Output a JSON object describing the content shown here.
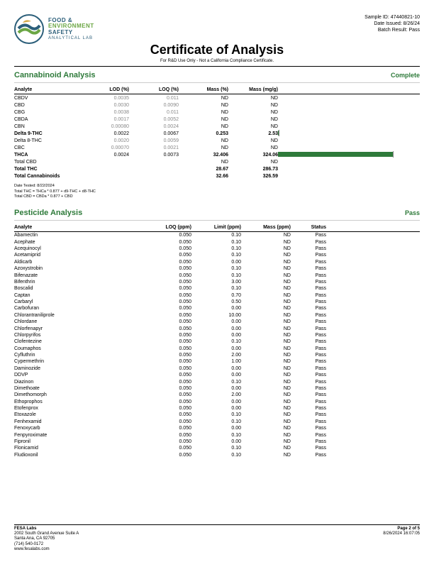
{
  "org": {
    "l1": "FOOD &",
    "l2": "ENVIRONMENT",
    "l3": "SAFETY",
    "l4": "ANALYTICAL LAB"
  },
  "meta": {
    "sample_label": "Sample ID:",
    "sample_id": "47440821-10",
    "date_label": "Date Issued:",
    "date_issued": "8/26/24",
    "batch_label": "Batch Result:",
    "batch_result": "Pass"
  },
  "title": "Certificate of Analysis",
  "subtitle": "For R&D Use Only - Not a California Compliance Certificate.",
  "cannabinoid": {
    "section_title": "Cannabinoid Analysis",
    "status": "Complete",
    "columns": [
      "Analyte",
      "LOD (%)",
      "LOQ (%)",
      "Mass (%)",
      "Mass (mg/g)"
    ],
    "bar_max": 400,
    "rows": [
      {
        "analyte": "CBDV",
        "lod": "0.0035",
        "loq": "0.011",
        "masspct": "ND",
        "massmg": "ND",
        "grey": true
      },
      {
        "analyte": "CBD",
        "lod": "0.0030",
        "loq": "0.0090",
        "masspct": "ND",
        "massmg": "ND",
        "grey": true
      },
      {
        "analyte": "CBG",
        "lod": "0.0038",
        "loq": "0.011",
        "masspct": "ND",
        "massmg": "ND",
        "grey": true
      },
      {
        "analyte": "CBDA",
        "lod": "0.0017",
        "loq": "0.0052",
        "masspct": "ND",
        "massmg": "ND",
        "grey": true
      },
      {
        "analyte": "CBN",
        "lod": "0.00080",
        "loq": "0.0024",
        "masspct": "ND",
        "massmg": "ND",
        "grey": true
      },
      {
        "analyte": "Delta 9-THC",
        "lod": "0.0022",
        "loq": "0.0067",
        "masspct": "0.253",
        "massmg": "2.53",
        "bold": true,
        "bar": 2.53
      },
      {
        "analyte": "Delta 8-THC",
        "lod": "0.0020",
        "loq": "0.0059",
        "masspct": "ND",
        "massmg": "ND",
        "grey": true
      },
      {
        "analyte": "CBC",
        "lod": "0.00070",
        "loq": "0.0021",
        "masspct": "ND",
        "massmg": "ND",
        "grey": true
      },
      {
        "analyte": "THCA",
        "lod": "0.0024",
        "loq": "0.0073",
        "masspct": "32.406",
        "massmg": "324.06",
        "bold": true,
        "bar": 324.06
      },
      {
        "analyte": "Total CBD",
        "lod": "",
        "loq": "",
        "masspct": "ND",
        "massmg": "ND"
      },
      {
        "analyte": "Total THC",
        "lod": "",
        "loq": "",
        "masspct": "28.67",
        "massmg": "286.73",
        "bold": true
      },
      {
        "analyte": "Total Cannabinoids",
        "lod": "",
        "loq": "",
        "masspct": "32.66",
        "massmg": "326.59",
        "bold": true
      }
    ],
    "notes": [
      "Date Tested: 8/22/2024",
      "Total THC = THCa * 0.877 + d9-THC + d8-THC",
      "Total CBD = CBDa * 0.877 + CBD"
    ]
  },
  "pesticide": {
    "section_title": "Pesticide Analysis",
    "status": "Pass",
    "columns": [
      "Analyte",
      "LOQ (ppm)",
      "Limit (ppm)",
      "Mass (ppm)",
      "Status"
    ],
    "rows": [
      {
        "a": "Abamectin",
        "loq": "0.050",
        "lim": "0.10",
        "mass": "ND",
        "st": "Pass"
      },
      {
        "a": "Acephate",
        "loq": "0.050",
        "lim": "0.10",
        "mass": "ND",
        "st": "Pass"
      },
      {
        "a": "Acequinocyl",
        "loq": "0.050",
        "lim": "0.10",
        "mass": "ND",
        "st": "Pass"
      },
      {
        "a": "Acetamiprid",
        "loq": "0.050",
        "lim": "0.10",
        "mass": "ND",
        "st": "Pass"
      },
      {
        "a": "Aldicarb",
        "loq": "0.050",
        "lim": "0.00",
        "mass": "ND",
        "st": "Pass"
      },
      {
        "a": "Azoxystrobin",
        "loq": "0.050",
        "lim": "0.10",
        "mass": "ND",
        "st": "Pass"
      },
      {
        "a": "Bifenazate",
        "loq": "0.050",
        "lim": "0.10",
        "mass": "ND",
        "st": "Pass"
      },
      {
        "a": "Bifenthrin",
        "loq": "0.050",
        "lim": "3.00",
        "mass": "ND",
        "st": "Pass"
      },
      {
        "a": "Boscalid",
        "loq": "0.050",
        "lim": "0.10",
        "mass": "ND",
        "st": "Pass"
      },
      {
        "a": "Captan",
        "loq": "0.050",
        "lim": "0.70",
        "mass": "ND",
        "st": "Pass"
      },
      {
        "a": "Carbaryl",
        "loq": "0.050",
        "lim": "0.50",
        "mass": "ND",
        "st": "Pass"
      },
      {
        "a": "Carbofuran",
        "loq": "0.050",
        "lim": "0.00",
        "mass": "ND",
        "st": "Pass"
      },
      {
        "a": "Chlorantraniliprole",
        "loq": "0.050",
        "lim": "10.00",
        "mass": "ND",
        "st": "Pass"
      },
      {
        "a": "Chlordane",
        "loq": "0.050",
        "lim": "0.00",
        "mass": "ND",
        "st": "Pass"
      },
      {
        "a": "Chlorfenapyr",
        "loq": "0.050",
        "lim": "0.00",
        "mass": "ND",
        "st": "Pass"
      },
      {
        "a": "Chlorpyrifos",
        "loq": "0.050",
        "lim": "0.00",
        "mass": "ND",
        "st": "Pass"
      },
      {
        "a": "Clofentezine",
        "loq": "0.050",
        "lim": "0.10",
        "mass": "ND",
        "st": "Pass"
      },
      {
        "a": "Coumaphos",
        "loq": "0.050",
        "lim": "0.00",
        "mass": "ND",
        "st": "Pass"
      },
      {
        "a": "Cyfluthrin",
        "loq": "0.050",
        "lim": "2.00",
        "mass": "ND",
        "st": "Pass"
      },
      {
        "a": "Cypermethrin",
        "loq": "0.050",
        "lim": "1.00",
        "mass": "ND",
        "st": "Pass"
      },
      {
        "a": "Daminozide",
        "loq": "0.050",
        "lim": "0.00",
        "mass": "ND",
        "st": "Pass"
      },
      {
        "a": "DDVP",
        "loq": "0.050",
        "lim": "0.00",
        "mass": "ND",
        "st": "Pass"
      },
      {
        "a": "Diazinon",
        "loq": "0.050",
        "lim": "0.10",
        "mass": "ND",
        "st": "Pass"
      },
      {
        "a": "Dimethoate",
        "loq": "0.050",
        "lim": "0.00",
        "mass": "ND",
        "st": "Pass"
      },
      {
        "a": "Dimethomorph",
        "loq": "0.050",
        "lim": "2.00",
        "mass": "ND",
        "st": "Pass"
      },
      {
        "a": "Ethoprophos",
        "loq": "0.050",
        "lim": "0.00",
        "mass": "ND",
        "st": "Pass"
      },
      {
        "a": "Etofenprox",
        "loq": "0.050",
        "lim": "0.00",
        "mass": "ND",
        "st": "Pass"
      },
      {
        "a": "Etoxazole",
        "loq": "0.050",
        "lim": "0.10",
        "mass": "ND",
        "st": "Pass"
      },
      {
        "a": "Fenhexamid",
        "loq": "0.050",
        "lim": "0.10",
        "mass": "ND",
        "st": "Pass"
      },
      {
        "a": "Fenoxycarb",
        "loq": "0.050",
        "lim": "0.00",
        "mass": "ND",
        "st": "Pass"
      },
      {
        "a": "Fenpyroximate",
        "loq": "0.050",
        "lim": "0.10",
        "mass": "ND",
        "st": "Pass"
      },
      {
        "a": "Fipronil",
        "loq": "0.050",
        "lim": "0.00",
        "mass": "ND",
        "st": "Pass"
      },
      {
        "a": "Flonicamid",
        "loq": "0.050",
        "lim": "0.10",
        "mass": "ND",
        "st": "Pass"
      },
      {
        "a": "Fludioxonil",
        "loq": "0.050",
        "lim": "0.10",
        "mass": "ND",
        "st": "Pass"
      }
    ]
  },
  "footer": {
    "company": "FESA Labs",
    "addr1": "2002 South Grand Avenue Suite A",
    "addr2": "Santa Ana, CA 92705",
    "phone": "(714) 540-0172",
    "web": "www.fesalabs.com",
    "page": "Page 2 of 5",
    "printed": "8/26/2024 16:07:05"
  },
  "colors": {
    "green": "#2e7a3a",
    "grey": "#888888"
  }
}
